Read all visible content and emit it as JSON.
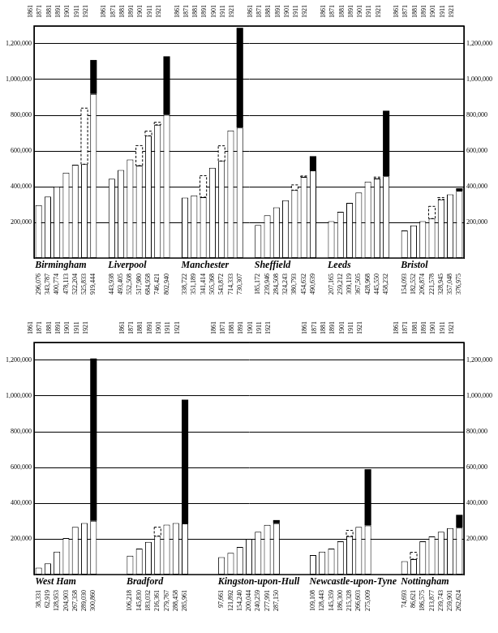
{
  "chart_data": [
    {
      "type": "bar",
      "stacked": true,
      "grid": true,
      "ylim": [
        0,
        1300000
      ],
      "yticks": [
        {
          "value": 200000,
          "label": "200,000"
        },
        {
          "value": 400000,
          "label": "400,000"
        },
        {
          "value": 600000,
          "label": "600,000"
        },
        {
          "value": 800000,
          "label": "800,000"
        },
        {
          "value": 1000000,
          "label": "1,000,000"
        },
        {
          "value": 1200000,
          "label": "1,200,000"
        }
      ],
      "cities": [
        {
          "name": "Birmingham",
          "categories": [
            "1861",
            "1871",
            "1881",
            "1891",
            "1901",
            "1911",
            "1921"
          ],
          "series": [
            {
              "color": "#ffffff",
              "line_style": "solid",
              "values": [
                296076,
                343787,
                400774,
                478113,
                522204,
                525833,
                919444
              ],
              "value_labels": [
                "296,076",
                "343,787",
                "400,774",
                "478,113",
                "522,204",
                "525,833",
                "919,444"
              ]
            },
            {
              "color": "#ffffff",
              "line_style": "dashed",
              "values": [
                null,
                null,
                null,
                null,
                null,
                314000,
                null
              ]
            },
            {
              "color": "#000000",
              "values": [
                null,
                null,
                null,
                null,
                null,
                null,
                190000
              ]
            }
          ]
        },
        {
          "name": "Liverpool",
          "categories": [
            "1861",
            "1871",
            "1881",
            "1891",
            "1901",
            "1911",
            "1921"
          ],
          "series": [
            {
              "color": "#ffffff",
              "line_style": "solid",
              "values": [
                443938,
                493405,
                552508,
                517980,
                684958,
                746421,
                802940
              ],
              "value_labels": [
                "443,938",
                "493,405",
                "552,508",
                "517,980",
                "684,958",
                "746,421",
                "802,940"
              ]
            },
            {
              "color": "#ffffff",
              "line_style": "dashed",
              "values": [
                null,
                null,
                null,
                112000,
                26000,
                14000,
                null
              ]
            },
            {
              "color": "#000000",
              "values": [
                null,
                null,
                null,
                null,
                null,
                null,
                327000
              ]
            }
          ]
        },
        {
          "name": "Manchester",
          "categories": [
            "1861",
            "1871",
            "1881",
            "1891",
            "1901",
            "1911",
            "1921"
          ],
          "series": [
            {
              "color": "#ffffff",
              "line_style": "solid",
              "values": [
                338722,
                351189,
                341414,
                505368,
                543872,
                714333,
                730307
              ],
              "value_labels": [
                "338,722",
                "351,189",
                "341,414",
                "505,368",
                "543,872",
                "714,333",
                "730,307"
              ]
            },
            {
              "color": "#ffffff",
              "line_style": "dashed",
              "values": [
                null,
                null,
                120000,
                null,
                85000,
                null,
                null
              ]
            },
            {
              "color": "#000000",
              "values": [
                null,
                null,
                null,
                null,
                null,
                null,
                560000
              ]
            }
          ]
        },
        {
          "name": "Sheffield",
          "categories": [
            "1861",
            "1871",
            "1881",
            "1891",
            "1901",
            "1911",
            "1921"
          ],
          "series": [
            {
              "color": "#ffffff",
              "line_style": "solid",
              "values": [
                185172,
                239946,
                284508,
                324243,
                380793,
                454632,
                490639
              ],
              "value_labels": [
                "185,172",
                "239,946",
                "284,508",
                "324,243",
                "380,793",
                "454,632",
                "490,639"
              ]
            },
            {
              "color": "#ffffff",
              "line_style": "dashed",
              "values": [
                null,
                null,
                null,
                null,
                29000,
                5000,
                null
              ]
            },
            {
              "color": "#000000",
              "values": [
                null,
                null,
                null,
                null,
                null,
                null,
                80000
              ]
            }
          ]
        },
        {
          "name": "Leeds",
          "categories": [
            "1861",
            "1871",
            "1881",
            "1891",
            "1901",
            "1911",
            "1921"
          ],
          "series": [
            {
              "color": "#ffffff",
              "line_style": "solid",
              "values": [
                207165,
                259212,
                309119,
                367505,
                428968,
                445550,
                458232
              ],
              "value_labels": [
                "207,165",
                "259,212",
                "309,119",
                "367,505",
                "428,968",
                "445,550",
                "458,232"
              ]
            },
            {
              "color": "#ffffff",
              "line_style": "dashed",
              "values": [
                null,
                null,
                null,
                null,
                null,
                8000,
                null
              ]
            },
            {
              "color": "#000000",
              "values": [
                null,
                null,
                null,
                null,
                null,
                null,
                367000
              ]
            }
          ]
        },
        {
          "name": "Bristol",
          "categories": [
            "1861",
            "1871",
            "1881",
            "1891",
            "1901",
            "1911",
            "1921"
          ],
          "series": [
            {
              "color": "#ffffff",
              "line_style": "solid",
              "values": [
                154093,
                182552,
                206874,
                221578,
                328945,
                357048,
                376975
              ],
              "value_labels": [
                "154,093",
                "182,552",
                "206,874",
                "221,578",
                "328,945",
                "357,048",
                "376,975"
              ]
            },
            {
              "color": "#ffffff",
              "line_style": "dashed",
              "values": [
                null,
                null,
                null,
                68000,
                10000,
                null,
                null
              ]
            },
            {
              "color": "#000000",
              "values": [
                null,
                null,
                null,
                null,
                null,
                null,
                14000
              ]
            }
          ]
        }
      ]
    },
    {
      "type": "bar",
      "stacked": true,
      "grid": true,
      "ylim": [
        0,
        1300000
      ],
      "yticks": [
        {
          "value": 200000,
          "label": "200,000"
        },
        {
          "value": 400000,
          "label": "400,000"
        },
        {
          "value": 600000,
          "label": "600,000"
        },
        {
          "value": 800000,
          "label": "800,000"
        },
        {
          "value": 1000000,
          "label": "1,000,000"
        },
        {
          "value": 1200000,
          "label": "1,200,000"
        }
      ],
      "cities": [
        {
          "name": "West Ham",
          "categories": [
            "1861",
            "1871",
            "1881",
            "1891",
            "1901",
            "1911",
            "1921"
          ],
          "series": [
            {
              "color": "#ffffff",
              "line_style": "solid",
              "values": [
                38331,
                62919,
                128953,
                204903,
                267358,
                289030,
                300860
              ],
              "value_labels": [
                "38,331",
                "62,919",
                "128,953",
                "204,903",
                "267,358",
                "289,030",
                "300,860"
              ]
            },
            {
              "color": "#ffffff",
              "line_style": "dashed",
              "values": [
                null,
                null,
                null,
                null,
                null,
                null,
                null
              ]
            },
            {
              "color": "#000000",
              "values": [
                null,
                null,
                null,
                null,
                null,
                null,
                909000
              ]
            }
          ]
        },
        {
          "name": "Bradford",
          "categories": [
            "1861",
            "1871",
            "1881",
            "1891",
            "1901",
            "1911",
            "1921"
          ],
          "series": [
            {
              "color": "#ffffff",
              "line_style": "solid",
              "values": [
                106218,
                145830,
                183032,
                216361,
                279767,
                288458,
                285961
              ],
              "value_labels": [
                "106,218",
                "145,830",
                "183,032",
                "216,361",
                "279,767",
                "288,458",
                "285,961"
              ]
            },
            {
              "color": "#ffffff",
              "line_style": "dashed",
              "values": [
                null,
                null,
                null,
                49000,
                null,
                null,
                null
              ]
            },
            {
              "color": "#000000",
              "values": [
                null,
                null,
                null,
                null,
                null,
                null,
                694000
              ]
            }
          ]
        },
        {
          "name": "Kingston-upon-Hull",
          "categories": [
            "1861",
            "1871",
            "1881",
            "1891",
            "1901",
            "1911",
            "1921"
          ],
          "series": [
            {
              "color": "#ffffff",
              "line_style": "solid",
              "values": [
                97661,
                121892,
                154240,
                200044,
                240259,
                277991,
                287150
              ],
              "value_labels": [
                "97,661",
                "121,892",
                "154,240",
                "200,044",
                "240,259",
                "277,991",
                "287,150"
              ]
            },
            {
              "color": "#ffffff",
              "line_style": "dashed",
              "values": [
                null,
                null,
                null,
                null,
                null,
                null,
                null
              ]
            },
            {
              "color": "#000000",
              "values": [
                null,
                null,
                null,
                null,
                null,
                null,
                18000
              ]
            }
          ]
        },
        {
          "name": "Newcastle-upon-Tyne",
          "categories": [
            "1861",
            "1871",
            "1881",
            "1891",
            "1901",
            "1911",
            "1921"
          ],
          "series": [
            {
              "color": "#ffffff",
              "line_style": "solid",
              "values": [
                109108,
                128443,
                145359,
                186300,
                215328,
                266603,
                275009
              ],
              "value_labels": [
                "109,108",
                "128,443",
                "145,359",
                "186,300",
                "215,328",
                "266,603",
                "275,009"
              ]
            },
            {
              "color": "#ffffff",
              "line_style": "dashed",
              "values": [
                null,
                null,
                null,
                null,
                32000,
                null,
                null
              ]
            },
            {
              "color": "#000000",
              "values": [
                null,
                null,
                null,
                null,
                null,
                null,
                315000
              ]
            }
          ]
        },
        {
          "name": "Nottingham",
          "categories": [
            "1861",
            "1871",
            "1881",
            "1891",
            "1901",
            "1911",
            "1921"
          ],
          "series": [
            {
              "color": "#ffffff",
              "line_style": "solid",
              "values": [
                74693,
                86621,
                186575,
                213877,
                239743,
                259901,
                262624
              ],
              "value_labels": [
                "74,693",
                "86,621",
                "186,575",
                "213,877",
                "239,743",
                "259,901",
                "262,624"
              ]
            },
            {
              "color": "#ffffff",
              "line_style": "dashed",
              "values": [
                null,
                38000,
                null,
                null,
                null,
                null,
                null
              ]
            },
            {
              "color": "#000000",
              "values": [
                null,
                null,
                null,
                null,
                null,
                null,
                72000
              ]
            }
          ]
        }
      ]
    }
  ]
}
